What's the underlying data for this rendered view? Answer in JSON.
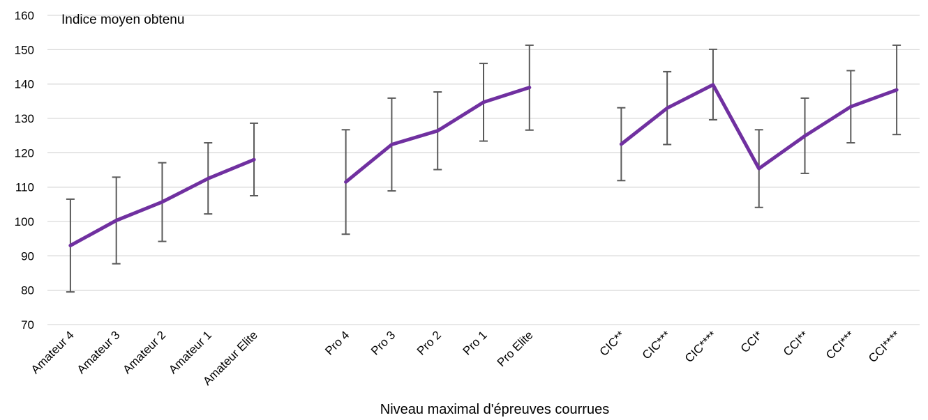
{
  "chart_data": {
    "type": "line",
    "title": "",
    "ylabel": "Indice moyen obtenu",
    "xlabel": "Niveau maximal d'épreuves courrues",
    "ylim": [
      70,
      160
    ],
    "yticks": [
      70,
      80,
      90,
      100,
      110,
      120,
      130,
      140,
      150,
      160
    ],
    "grid": true,
    "legend": "none",
    "colors": {
      "line": "#7030A0",
      "error_bars": "#595959",
      "grid": "#d9d9d9"
    },
    "categories": [
      "Amateur 4",
      "Amateur 3",
      "Amateur 2",
      "Amateur 1",
      "Amateur Elite",
      "",
      "Pro 4",
      "Pro 3",
      "Pro 2",
      "Pro 1",
      "Pro Elite",
      "",
      "CIC**",
      "CIC***",
      "CIC****",
      "CCI*",
      "CCI**",
      "CCI***",
      "CCI****"
    ],
    "series": [
      {
        "values": [
          93,
          100.3,
          105.7,
          112.5,
          118,
          null,
          111.5,
          122.4,
          126.4,
          134.7,
          139,
          null,
          122.5,
          133,
          139.8,
          115.4,
          124.9,
          133.4,
          138.3
        ],
        "error_low": [
          79.5,
          87.7,
          94.2,
          102.2,
          107.5,
          null,
          96.3,
          108.9,
          115.1,
          123.4,
          126.6,
          null,
          111.9,
          122.4,
          129.6,
          104.1,
          114,
          122.9,
          125.3
        ],
        "error_high": [
          106.5,
          112.9,
          117.1,
          122.9,
          128.6,
          null,
          126.7,
          135.9,
          137.7,
          146,
          151.3,
          null,
          133.1,
          143.6,
          150.1,
          126.7,
          135.9,
          143.9,
          151.3
        ]
      }
    ]
  }
}
